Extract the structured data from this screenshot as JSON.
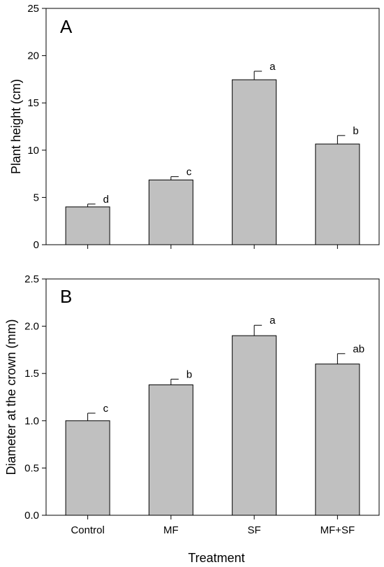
{
  "chart_data": [
    {
      "type": "bar",
      "panel": "A",
      "categories": [
        "Control",
        "MF",
        "SF",
        "MF+SF"
      ],
      "values": [
        4.0,
        6.85,
        17.45,
        10.65
      ],
      "errors": [
        0.3,
        0.35,
        0.9,
        0.9
      ],
      "significance": [
        "d",
        "c",
        "a",
        "b"
      ],
      "ylabel": "Plant height (cm)",
      "ylim": [
        0,
        25
      ],
      "yticks": [
        "0",
        "5",
        "10",
        "15",
        "20",
        "25"
      ],
      "show_xtick_labels": false,
      "bar_color": "#c0c0c0"
    },
    {
      "type": "bar",
      "panel": "B",
      "categories": [
        "Control",
        "MF",
        "SF",
        "MF+SF"
      ],
      "values": [
        1.0,
        1.38,
        1.9,
        1.6
      ],
      "errors": [
        0.08,
        0.06,
        0.11,
        0.11
      ],
      "significance": [
        "c",
        "b",
        "a",
        "ab"
      ],
      "ylabel": "Diameter at the crown (mm)",
      "ylim": [
        0,
        2.5
      ],
      "yticks": [
        "0.0",
        "0.5",
        "1.0",
        "1.5",
        "2.0",
        "2.5"
      ],
      "show_xtick_labels": true,
      "bar_color": "#c0c0c0"
    }
  ],
  "xlabel": "Treatment"
}
